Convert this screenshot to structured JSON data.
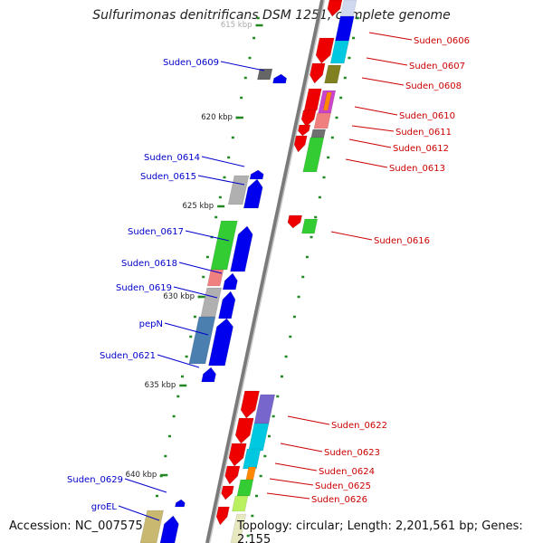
{
  "title": "Sulfurimonas denitrificans DSM 1251, complete genome",
  "accession": "Accession: NC_007575",
  "topology": "Topology: circular; Length: 2,201,561 bp; Genes: 2,155",
  "kbp_labels": [
    {
      "text": "615 kbp",
      "partial": true
    },
    {
      "text": "620 kbp"
    },
    {
      "text": "625 kbp"
    },
    {
      "text": "630 kbp"
    },
    {
      "text": "635 kbp"
    },
    {
      "text": "640 kbp"
    }
  ],
  "left_genes": [
    {
      "label": "Suden_0609",
      "color": "#0000cc"
    },
    {
      "label": "Suden_0614",
      "color": "#0000cc"
    },
    {
      "label": "Suden_0615",
      "color": "#0000cc"
    },
    {
      "label": "Suden_0617",
      "color": "#0000cc"
    },
    {
      "label": "Suden_0618",
      "color": "#0000cc"
    },
    {
      "label": "Suden_0619",
      "color": "#0000cc"
    },
    {
      "label": "pepN",
      "color": "#0000cc"
    },
    {
      "label": "Suden_0621",
      "color": "#0000cc"
    },
    {
      "label": "Suden_0629",
      "color": "#0000cc"
    },
    {
      "label": "groEL",
      "color": "#0000cc"
    }
  ],
  "right_genes": [
    {
      "label": "Suden_0606",
      "color": "#cc0000"
    },
    {
      "label": "Suden_0607",
      "color": "#cc0000"
    },
    {
      "label": "Suden_0608",
      "color": "#cc0000"
    },
    {
      "label": "Suden_0610",
      "color": "#cc0000"
    },
    {
      "label": "Suden_0611",
      "color": "#cc0000"
    },
    {
      "label": "Suden_0612",
      "color": "#cc0000"
    },
    {
      "label": "Suden_0613",
      "color": "#cc0000"
    },
    {
      "label": "Suden_0616",
      "color": "#cc0000"
    },
    {
      "label": "Suden_0622",
      "color": "#cc0000"
    },
    {
      "label": "Suden_0623",
      "color": "#cc0000"
    },
    {
      "label": "Suden_0624",
      "color": "#cc0000"
    },
    {
      "label": "Suden_0625",
      "color": "#cc0000"
    },
    {
      "label": "Suden_0626",
      "color": "#cc0000"
    }
  ],
  "colors": {
    "forward_arrow": "#0000ee",
    "reverse_arrow": "#ee0000",
    "backbone": "#808080",
    "tick": "#228822",
    "cog_green": "#33cc33",
    "cog_gray": "#b0b0b0",
    "cog_pink": "#f08080",
    "cog_steel": "#4a7fb0",
    "cog_cyan": "#00c8e0",
    "cog_purple": "#7766cc",
    "cog_olive": "#808020",
    "cog_orange": "#ff8800",
    "cog_lime": "#b8f060",
    "cog_khaki": "#c8b870"
  }
}
